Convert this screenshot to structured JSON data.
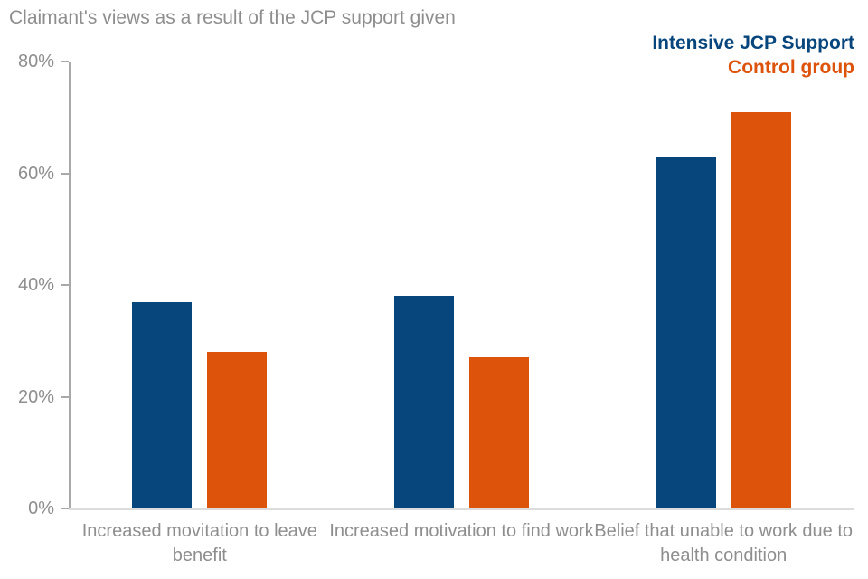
{
  "title": "Claimant's views as a result of the JCP support given",
  "legend": {
    "items": [
      {
        "label": "Intensive JCP Support",
        "color": "#07457d"
      },
      {
        "label": "Control group",
        "color": "#dd530c"
      }
    ]
  },
  "chart_data": {
    "type": "bar",
    "title": "Claimant's views as a result of the JCP support given",
    "categories": [
      "Increased movitation to leave benefit",
      "Increased motivation to find work",
      "Belief that unable to work due to health condition"
    ],
    "series": [
      {
        "name": "Intensive JCP Support",
        "color": "#07457d",
        "values": [
          37,
          38,
          63
        ]
      },
      {
        "name": "Control group",
        "color": "#dd530c",
        "values": [
          28,
          27,
          71
        ]
      }
    ],
    "xlabel": "",
    "ylabel": "",
    "ylim": [
      0,
      80
    ],
    "yticks": [
      0,
      20,
      40,
      60,
      80
    ],
    "ytick_suffix": "%",
    "grid": false,
    "legend_position": "top-right"
  }
}
